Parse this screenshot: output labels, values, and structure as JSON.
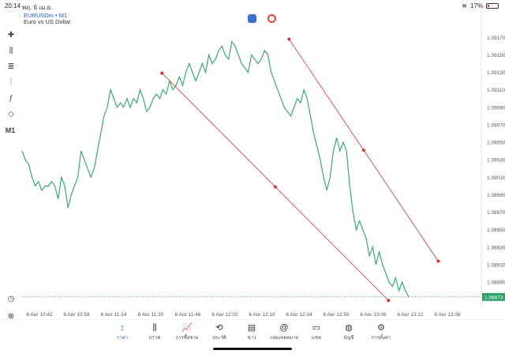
{
  "status": {
    "time": "20:14",
    "date": "พฤ. 6 เม.ย.",
    "battery": "17%"
  },
  "header": {
    "symbol": "EURUSDm • M1",
    "description": "Euro vs US Dollar"
  },
  "toolbar": {
    "timeframe": "M1"
  },
  "price_axis": [
    "1.09170",
    "1.09150",
    "1.09130",
    "1.09110",
    "1.09090",
    "1.09070",
    "1.09050",
    "1.09030",
    "1.09010",
    "1.08990",
    "1.08970",
    "1.08950",
    "1.08930",
    "1.08910",
    "1.08890"
  ],
  "current_price": "1.08873",
  "time_axis": [
    "6 Apr 10:42",
    "6 Apr 10:58",
    "6 Apr 11:14",
    "6 Apr 11:30",
    "6 Apr 11:46",
    "6 Apr 12:02",
    "6 Apr 12:18",
    "6 Apr 12:34",
    "6 Apr 12:50",
    "6 Apr 13:06",
    "6 Apr 13:22",
    "6 Apr 13:38"
  ],
  "colors": {
    "line": "#3aa873",
    "channel": "#d63030",
    "accent": "#1a6fd4",
    "price_tag": "#2ca06b"
  },
  "nav": [
    {
      "label": "ราคา",
      "icon": "↕",
      "active": true
    },
    {
      "label": "กราฟ",
      "icon": "⫼",
      "active": false
    },
    {
      "label": "การซื้อขาย",
      "icon": "📈",
      "active": false
    },
    {
      "label": "ประวัติ",
      "icon": "⟲",
      "active": false
    },
    {
      "label": "ข่าว",
      "icon": "▤",
      "active": false
    },
    {
      "label": "กล่องจดหมาย",
      "icon": "@",
      "active": false
    },
    {
      "label": "แชท",
      "icon": "▭",
      "active": false
    },
    {
      "label": "บัญชี",
      "icon": "◍",
      "active": false
    },
    {
      "label": "การตั้งค่า",
      "icon": "⚙",
      "active": false
    }
  ],
  "chart_data": {
    "type": "line",
    "series": [
      {
        "values": [
          1.0904,
          1.0903,
          1.09025,
          1.0901,
          1.09,
          1.09005,
          1.08995,
          1.09,
          1.09,
          1.09005,
          1.09,
          1.08985,
          1.0901,
          1.09,
          1.08975,
          1.0899,
          1.09,
          1.0901,
          1.0904,
          1.0903,
          1.0902,
          1.0901,
          1.0902,
          1.0904,
          1.0906,
          1.0908,
          1.0909,
          1.0911,
          1.091,
          1.0909,
          1.09095,
          1.0909,
          1.091,
          1.0909,
          1.091,
          1.09095,
          1.0911,
          1.091,
          1.09085,
          1.0909,
          1.091,
          1.09105,
          1.091,
          1.0911,
          1.09105,
          1.0912,
          1.0911,
          1.09115,
          1.09125,
          1.09115,
          1.0913,
          1.0914,
          1.0913,
          1.0912,
          1.0913,
          1.0914,
          1.0913,
          1.0915,
          1.0914,
          1.09145,
          1.09155,
          1.0916,
          1.0915,
          1.09145,
          1.09165,
          1.0916,
          1.0915,
          1.0914,
          1.09135,
          1.0913,
          1.0915,
          1.09145,
          1.0914,
          1.09145,
          1.09155,
          1.0915,
          1.0913,
          1.0912,
          1.0911,
          1.091,
          1.0909,
          1.09085,
          1.0908,
          1.0909,
          1.091,
          1.09095,
          1.0911,
          1.091,
          1.0908,
          1.0906,
          1.09045,
          1.0903,
          1.0901,
          1.08995,
          1.0901,
          1.0904,
          1.09055,
          1.0904,
          1.0905,
          1.0904,
          1.09,
          1.0897,
          1.0895,
          1.0896,
          1.0895,
          1.0894,
          1.0892,
          1.0893,
          1.0891,
          1.08925,
          1.0891,
          1.089,
          1.0889,
          1.08885,
          1.08895,
          1.0888,
          1.0889,
          1.0888,
          1.08873
        ]
      }
    ],
    "channel_upper": [
      [
        7.25,
        1.09168
      ],
      [
        11.3,
        1.08914
      ]
    ],
    "channel_lower": [
      [
        3.8,
        1.09129
      ],
      [
        9.95,
        1.08869
      ]
    ],
    "xlim": [
      0,
      12
    ],
    "ylim": [
      1.08862,
      1.09182
    ]
  }
}
